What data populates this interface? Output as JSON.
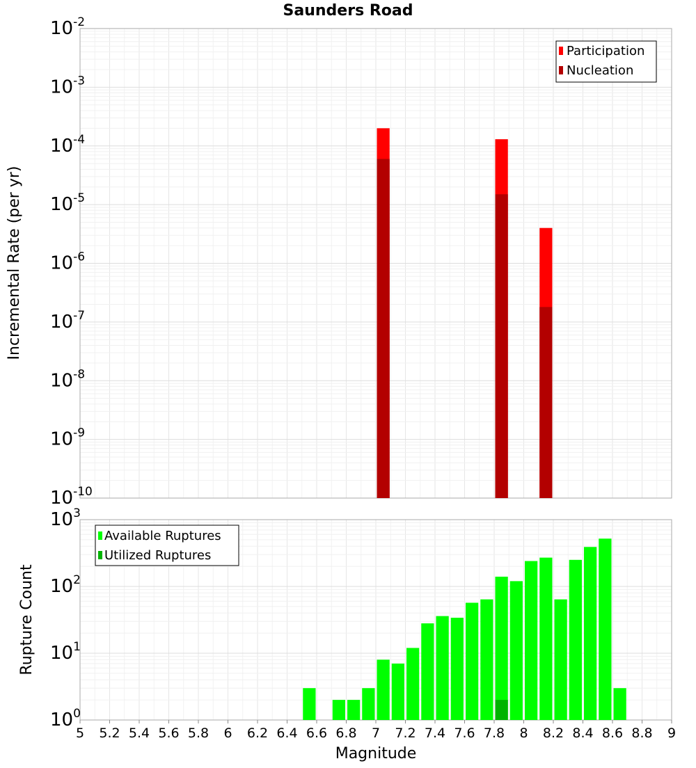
{
  "chart_data": [
    {
      "type": "bar",
      "title": "Saunders Road",
      "ylabel": "Incremental Rate (per yr)",
      "xlabel": "",
      "y_scale": "log",
      "ylim_exp": [
        -10,
        -2
      ],
      "xlim": [
        5,
        9
      ],
      "bar_width": 0.1,
      "grid": true,
      "legend_position": "top-right",
      "series": [
        {
          "name": "Participation",
          "color": "#ff0000",
          "x": [
            7.05,
            7.85,
            8.15
          ],
          "values": [
            0.0002,
            0.00013,
            4e-06
          ]
        },
        {
          "name": "Nucleation",
          "color": "#b30000",
          "x": [
            7.05,
            7.85,
            8.15
          ],
          "values": [
            6e-05,
            1.5e-05,
            1.8e-07
          ]
        }
      ]
    },
    {
      "type": "bar",
      "title": "",
      "ylabel": "Rupture Count",
      "xlabel": "Magnitude",
      "y_scale": "log",
      "ylim_exp": [
        0,
        3
      ],
      "xlim": [
        5,
        9
      ],
      "bar_width": 0.1,
      "grid": true,
      "legend_position": "top-left",
      "x_ticks": [
        "5",
        "5.2",
        "5.4",
        "5.6",
        "5.8",
        "6",
        "6.2",
        "6.4",
        "6.6",
        "6.8",
        "7",
        "7.2",
        "7.4",
        "7.6",
        "7.8",
        "8",
        "8.2",
        "8.4",
        "8.6",
        "8.8",
        "9"
      ],
      "series": [
        {
          "name": "Available Ruptures",
          "color": "#00ff00",
          "x": [
            6.55,
            6.75,
            6.85,
            6.95,
            7.05,
            7.15,
            7.25,
            7.35,
            7.45,
            7.55,
            7.65,
            7.75,
            7.85,
            7.95,
            8.05,
            8.15,
            8.25,
            8.35,
            8.45,
            8.55,
            8.65
          ],
          "values": [
            3,
            2,
            2,
            3,
            8,
            7,
            12,
            28,
            36,
            34,
            57,
            64,
            140,
            120,
            240,
            270,
            64,
            250,
            390,
            520,
            3
          ]
        },
        {
          "name": "Utilized Ruptures",
          "color": "#00b300",
          "x": [
            7.05,
            7.85,
            8.15
          ],
          "values": [
            1,
            2,
            1
          ]
        }
      ]
    }
  ]
}
